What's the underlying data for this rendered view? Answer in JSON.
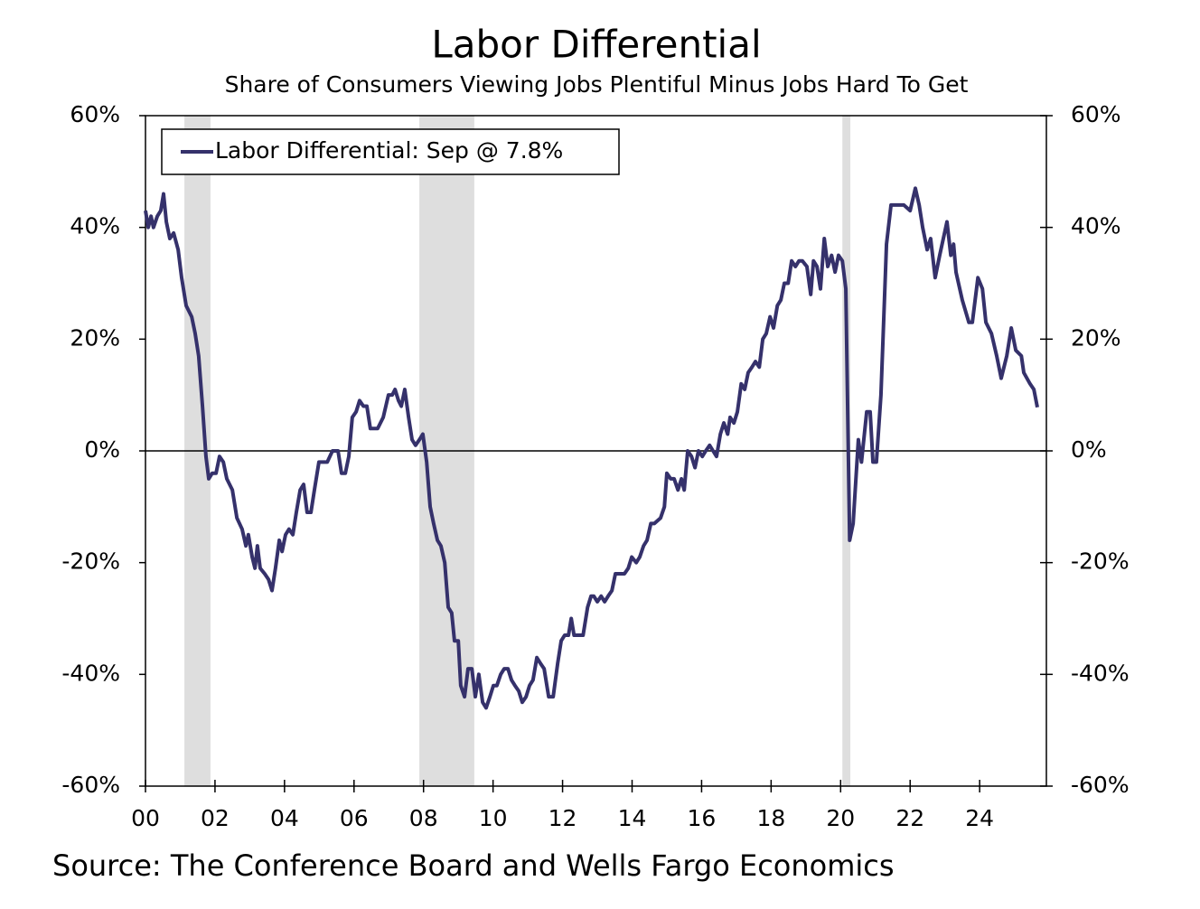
{
  "chart_data": {
    "type": "line",
    "title": "Labor Differential",
    "subtitle": "Share of Consumers Viewing Jobs Plentiful Minus Jobs Hard To Get",
    "source": "Source: The Conference Board and Wells Fargo Economics",
    "xlim": [
      2000,
      2025.92
    ],
    "ylim": [
      -60,
      60
    ],
    "y2lim": [
      -60,
      60
    ],
    "xticks": [
      {
        "value": 2000,
        "label": "00"
      },
      {
        "value": 2002,
        "label": "02"
      },
      {
        "value": 2004,
        "label": "04"
      },
      {
        "value": 2006,
        "label": "06"
      },
      {
        "value": 2008,
        "label": "08"
      },
      {
        "value": 2010,
        "label": "10"
      },
      {
        "value": 2012,
        "label": "12"
      },
      {
        "value": 2014,
        "label": "14"
      },
      {
        "value": 2016,
        "label": "16"
      },
      {
        "value": 2018,
        "label": "18"
      },
      {
        "value": 2020,
        "label": "20"
      },
      {
        "value": 2022,
        "label": "22"
      },
      {
        "value": 2024,
        "label": "24"
      }
    ],
    "yticks": [
      {
        "value": 60,
        "label": "60%"
      },
      {
        "value": 40,
        "label": "40%"
      },
      {
        "value": 20,
        "label": "20%"
      },
      {
        "value": 0,
        "label": "0%"
      },
      {
        "value": -20,
        "label": "-20%"
      },
      {
        "value": -40,
        "label": "-40%"
      },
      {
        "value": -60,
        "label": "-60%"
      }
    ],
    "y2ticks": [
      {
        "value": 60,
        "label": "60%"
      },
      {
        "value": 40,
        "label": "40%"
      },
      {
        "value": 20,
        "label": "20%"
      },
      {
        "value": 0,
        "label": "0%"
      },
      {
        "value": -20,
        "label": "-20%"
      },
      {
        "value": -40,
        "label": "-40%"
      },
      {
        "value": -60,
        "label": "-60%"
      }
    ],
    "recessions": [
      [
        2001.12,
        2001.87
      ],
      [
        2007.88,
        2009.46
      ],
      [
        2020.05,
        2020.28
      ]
    ],
    "recession_color": "#dedede",
    "legend": "upper left",
    "x": [
      2000.0,
      2000.08,
      2000.16,
      2000.23,
      2000.34,
      2000.44,
      2000.52,
      2000.6,
      2000.7,
      2000.81,
      2000.94,
      2001.04,
      2001.17,
      2001.33,
      2001.43,
      2001.53,
      2001.64,
      2001.74,
      2001.82,
      2001.92,
      2002.03,
      2002.13,
      2002.24,
      2002.34,
      2002.5,
      2002.63,
      2002.78,
      2002.89,
      2002.96,
      2003.07,
      2003.15,
      2003.22,
      2003.3,
      2003.43,
      2003.54,
      2003.64,
      2003.74,
      2003.85,
      2003.93,
      2004.03,
      2004.13,
      2004.24,
      2004.34,
      2004.45,
      2004.55,
      2004.65,
      2004.76,
      2004.86,
      2004.99,
      2005.12,
      2005.23,
      2005.38,
      2005.54,
      2005.64,
      2005.75,
      2005.85,
      2005.95,
      2006.06,
      2006.16,
      2006.27,
      2006.37,
      2006.47,
      2006.58,
      2006.68,
      2006.84,
      2006.99,
      2007.1,
      2007.18,
      2007.28,
      2007.36,
      2007.46,
      2007.57,
      2007.67,
      2007.77,
      2007.88,
      2007.98,
      2008.09,
      2008.19,
      2008.29,
      2008.4,
      2008.5,
      2008.61,
      2008.71,
      2008.81,
      2008.89,
      2009.0,
      2009.07,
      2009.18,
      2009.28,
      2009.39,
      2009.49,
      2009.59,
      2009.7,
      2009.8,
      2009.91,
      2010.01,
      2010.11,
      2010.22,
      2010.32,
      2010.43,
      2010.53,
      2010.63,
      2010.74,
      2010.84,
      2010.95,
      2011.05,
      2011.15,
      2011.26,
      2011.36,
      2011.47,
      2011.6,
      2011.73,
      2011.86,
      2011.96,
      2012.06,
      2012.17,
      2012.25,
      2012.33,
      2012.45,
      2012.59,
      2012.72,
      2012.82,
      2012.9,
      2013.0,
      2013.11,
      2013.21,
      2013.31,
      2013.42,
      2013.52,
      2013.65,
      2013.78,
      2013.89,
      2013.99,
      2014.12,
      2014.22,
      2014.33,
      2014.43,
      2014.54,
      2014.64,
      2014.82,
      2014.93,
      2015.0,
      2015.11,
      2015.21,
      2015.32,
      2015.42,
      2015.5,
      2015.6,
      2015.71,
      2015.81,
      2015.91,
      2016.02,
      2016.12,
      2016.23,
      2016.33,
      2016.43,
      2016.54,
      2016.64,
      2016.75,
      2016.82,
      2016.93,
      2017.03,
      2017.14,
      2017.24,
      2017.34,
      2017.45,
      2017.55,
      2017.66,
      2017.76,
      2017.86,
      2017.97,
      2018.07,
      2018.18,
      2018.28,
      2018.38,
      2018.49,
      2018.59,
      2018.7,
      2018.8,
      2018.9,
      2019.03,
      2019.14,
      2019.22,
      2019.32,
      2019.42,
      2019.53,
      2019.63,
      2019.74,
      2019.84,
      2019.94,
      2020.05,
      2020.15,
      2020.26,
      2020.36,
      2020.51,
      2020.6,
      2020.75,
      2020.85,
      2020.93,
      2021.03,
      2021.16,
      2021.32,
      2021.45,
      2021.63,
      2021.82,
      2022.0,
      2022.15,
      2022.26,
      2022.36,
      2022.49,
      2022.59,
      2022.72,
      2022.85,
      2023.06,
      2023.17,
      2023.25,
      2023.32,
      2023.5,
      2023.69,
      2023.79,
      2023.95,
      2024.08,
      2024.18,
      2024.34,
      2024.49,
      2024.62,
      2024.78,
      2024.91,
      2025.04,
      2025.2,
      2025.27,
      2025.45,
      2025.56,
      2025.66
    ],
    "series": [
      {
        "name": "Labor Differential: Sep @ 7.8%",
        "color": "#35316b",
        "values": [
          43,
          40,
          42,
          40,
          42,
          43,
          46,
          41,
          38,
          39,
          36,
          31,
          26,
          24,
          21,
          17,
          8,
          -1,
          -5,
          -4,
          -4,
          -1,
          -2,
          -5,
          -7,
          -12,
          -14,
          -17,
          -15,
          -19,
          -21,
          -17,
          -21,
          -22,
          -23,
          -25,
          -21,
          -16,
          -18,
          -15,
          -14,
          -15,
          -11,
          -7,
          -6,
          -11,
          -11,
          -7,
          -2,
          -2,
          -2,
          0,
          0,
          -4,
          -4,
          -1,
          6,
          7,
          9,
          8,
          8,
          4,
          4,
          4,
          6,
          10,
          10,
          11,
          9,
          8,
          11,
          6,
          2,
          1,
          2,
          3,
          -2,
          -10,
          -13,
          -16,
          -17,
          -20,
          -28,
          -29,
          -34,
          -34,
          -42,
          -44,
          -39,
          -39,
          -44,
          -40,
          -45,
          -46,
          -44,
          -42,
          -42,
          -40,
          -39,
          -39,
          -41,
          -42,
          -43,
          -45,
          -44,
          -42,
          -41,
          -37,
          -38,
          -39,
          -44,
          -44,
          -38,
          -34,
          -33,
          -33,
          -30,
          -33,
          -33,
          -33,
          -28,
          -26,
          -26,
          -27,
          -26,
          -27,
          -26,
          -25,
          -22,
          -22,
          -22,
          -21,
          -19,
          -20,
          -19,
          -17,
          -16,
          -13,
          -13,
          -12,
          -10,
          -4,
          -5,
          -5,
          -7,
          -5,
          -7,
          0,
          -1,
          -3,
          0,
          -1,
          0,
          1,
          0,
          -1,
          3,
          5,
          3,
          6,
          5,
          7,
          12,
          11,
          14,
          15,
          16,
          15,
          20,
          21,
          24,
          22,
          26,
          27,
          30,
          30,
          34,
          33,
          34,
          34,
          33,
          28,
          34,
          33,
          29,
          38,
          33,
          35,
          32,
          35,
          34,
          29,
          -16,
          -13,
          2,
          -2,
          7,
          7,
          -2,
          -2,
          10,
          37,
          44,
          44,
          44,
          43,
          47,
          44,
          40,
          36,
          38,
          31,
          35,
          41,
          35,
          37,
          32,
          27,
          23,
          23,
          31,
          29,
          23,
          21,
          17,
          13,
          17,
          22,
          18,
          17,
          14,
          12,
          11,
          7.8
        ]
      }
    ]
  }
}
